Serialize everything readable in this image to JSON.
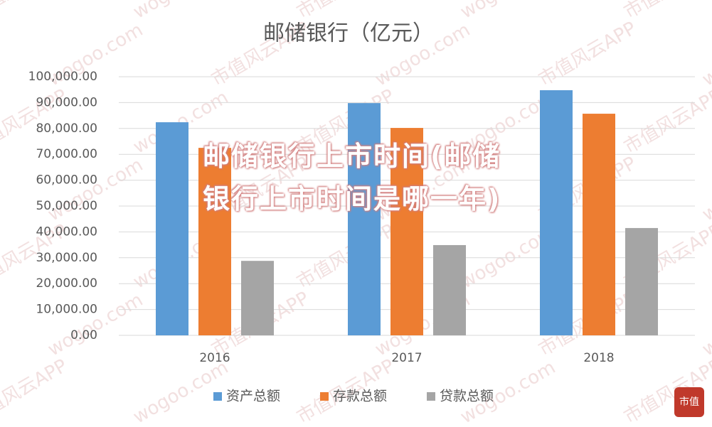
{
  "chart_data": {
    "type": "bar",
    "title": "邮储银行（亿元）",
    "categories": [
      "2016",
      "2017",
      "2018"
    ],
    "series": [
      {
        "name": "资产总额",
        "color": "#5b9bd5",
        "values": [
          82400,
          89800,
          94800
        ]
      },
      {
        "name": "存款总额",
        "color": "#ed7d31",
        "values": [
          72500,
          80200,
          85700
        ]
      },
      {
        "name": "贷款总额",
        "color": "#a5a5a5",
        "values": [
          28800,
          34900,
          41500
        ]
      }
    ],
    "ylim": [
      0,
      100000
    ],
    "yticks": [
      {
        "value": 0,
        "label": "0.00"
      },
      {
        "value": 10000,
        "label": "10,000.00"
      },
      {
        "value": 20000,
        "label": "20,000.00"
      },
      {
        "value": 30000,
        "label": "30,000.00"
      },
      {
        "value": 40000,
        "label": "40,000.00"
      },
      {
        "value": 50000,
        "label": "50,000.00"
      },
      {
        "value": 60000,
        "label": "60,000.00"
      },
      {
        "value": 70000,
        "label": "70,000.00"
      },
      {
        "value": 80000,
        "label": "80,000.00"
      },
      {
        "value": 90000,
        "label": "90,000.00"
      },
      {
        "value": 100000,
        "label": "100,000.00"
      }
    ],
    "grid": true,
    "legend": "bottom"
  },
  "overlay_text": "邮储银行上市时间(邮储银行上市时间是哪一年)",
  "watermarks": [
    "市值风云APP",
    "wogoo.com"
  ],
  "seal": "市值"
}
